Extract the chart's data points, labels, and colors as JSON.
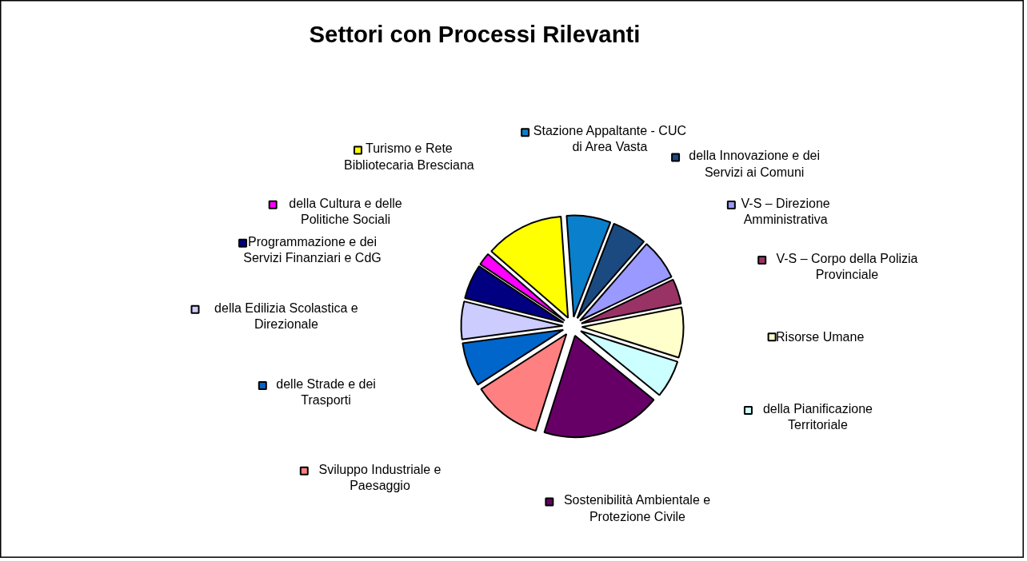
{
  "chart_data": {
    "type": "pie",
    "title": "Settori con Processi Rilevanti",
    "categories": [
      "Stazione Appaltante - CUC di Area Vasta",
      "della Innovazione e dei Servizi ai Comuni",
      "V-S – Direzione Amministrativa",
      "V-S – Corpo della Polizia Provinciale",
      "Risorse Umane",
      "della Pianificazione Territoriale",
      "Sostenibilità Ambientale e Protezione Civile",
      "Sviluppo Industriale e Paesaggio",
      "delle Strade e dei Trasporti",
      "della Edilizia Scolastica e Direzionale",
      "Programmazione e dei Servizi Finanziari e CdG",
      "della Cultura e delle Politiche Sociali",
      "Turismo e Rete Bibliotecaria Bresciana"
    ],
    "values": [
      7,
      5.5,
      6.5,
      4,
      8,
      6,
      19,
      11,
      7,
      6,
      5.5,
      2,
      12.5
    ],
    "legend": "top left",
    "colors": [
      "#0a7fcc",
      "#1a4a80",
      "#9999ff",
      "#993366",
      "#ffffcc",
      "#ccffff",
      "#660066",
      "#ff8080",
      "#0066cc",
      "#ccccff",
      "#000080",
      "#ff00ff",
      "#ffff00"
    ]
  }
}
